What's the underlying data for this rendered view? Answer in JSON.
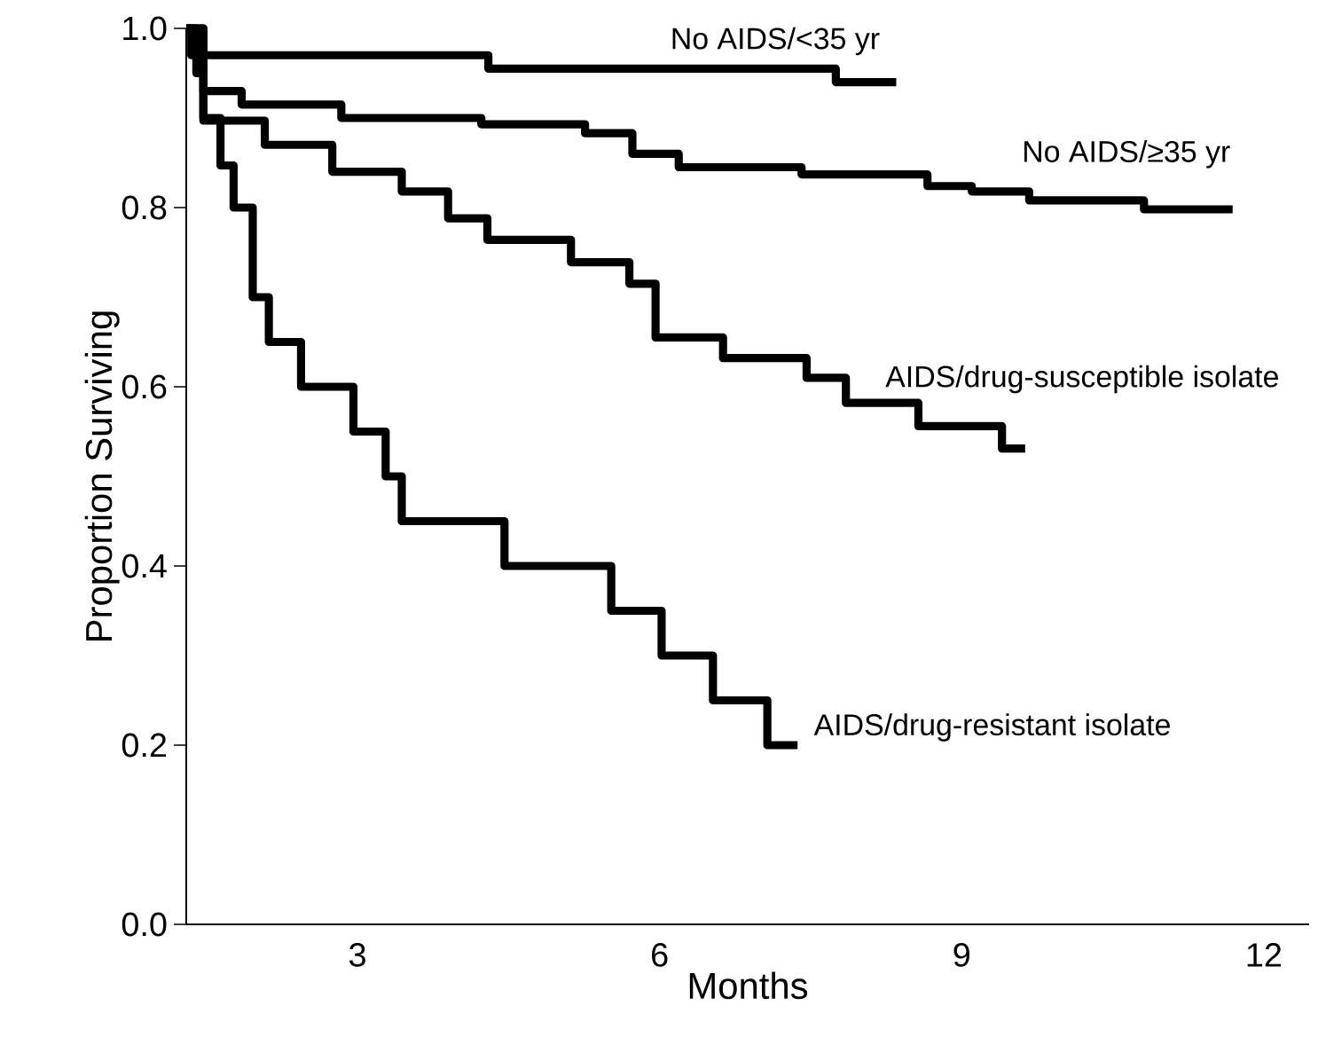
{
  "chart_data": {
    "type": "step",
    "xlabel": "Months",
    "ylabel": "Proportion Surviving",
    "xlim": [
      1.3,
      12.45
    ],
    "xticks": [
      3,
      6,
      9,
      12
    ],
    "ylim": [
      0,
      1.0
    ],
    "yticks": [
      {
        "value": 0,
        "label": "0.0"
      },
      {
        "value": 0.2,
        "label": "0.2"
      },
      {
        "value": 0.4,
        "label": "0.4"
      },
      {
        "value": 0.6,
        "label": "0.6"
      },
      {
        "value": 0.8,
        "label": "0.8"
      },
      {
        "value": 1.0,
        "label": "1.0"
      }
    ],
    "grid": false,
    "legend": false,
    "marker": "none",
    "line_style": "solid",
    "series": [
      {
        "name": "No AIDS/<35 yr",
        "color": "#000000",
        "x": [
          1.3,
          1.35,
          4.3,
          7.75,
          8.35
        ],
        "values": [
          1.0,
          0.97,
          0.955,
          0.94,
          0.94
        ]
      },
      {
        "name": "No AIDS/≥35 yr",
        "color": "#000000",
        "x": [
          1.3,
          1.4,
          1.47,
          1.85,
          2.84,
          4.23,
          5.26,
          5.73,
          6.19,
          7.41,
          8.66,
          9.1,
          9.67,
          10.81,
          11.69
        ],
        "values": [
          1.0,
          0.95,
          0.93,
          0.915,
          0.9,
          0.893,
          0.883,
          0.86,
          0.845,
          0.837,
          0.824,
          0.818,
          0.808,
          0.798,
          0.798
        ]
      },
      {
        "name": "AIDS/drug-susceptible isolate",
        "color": "#000000",
        "x": [
          1.3,
          1.47,
          2.08,
          2.75,
          3.44,
          3.9,
          4.29,
          5.12,
          5.7,
          5.96,
          6.63,
          7.46,
          7.85,
          8.57,
          9.4,
          9.63
        ],
        "values": [
          1.0,
          0.897,
          0.87,
          0.84,
          0.818,
          0.788,
          0.764,
          0.739,
          0.715,
          0.655,
          0.632,
          0.61,
          0.582,
          0.556,
          0.531,
          0.531
        ]
      },
      {
        "name": "AIDS/drug-resistant isolate",
        "color": "#000000",
        "x": [
          1.3,
          1.47,
          1.64,
          1.77,
          1.96,
          2.12,
          2.44,
          2.96,
          3.28,
          3.44,
          4.46,
          5.52,
          6.02,
          6.53,
          7.07,
          7.37
        ],
        "values": [
          1.0,
          0.9,
          0.847,
          0.8,
          0.7,
          0.65,
          0.6,
          0.55,
          0.5,
          0.45,
          0.4,
          0.35,
          0.3,
          0.25,
          0.2,
          0.2
        ]
      }
    ]
  }
}
